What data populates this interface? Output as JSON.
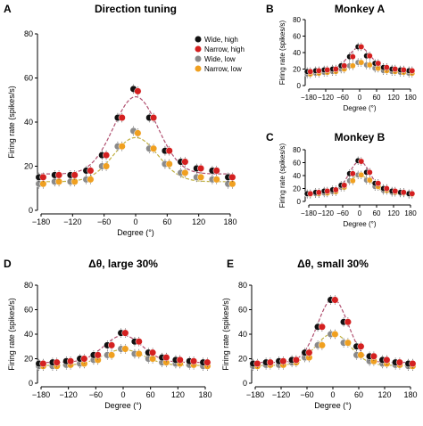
{
  "x_values": [
    -180,
    -150,
    -120,
    -90,
    -60,
    -30,
    0,
    30,
    60,
    90,
    120,
    150,
    180
  ],
  "legend": [
    "Wide, high",
    "Narrow, high",
    "Wide, low",
    "Narrow, low"
  ],
  "colors": {
    "wide_high": "#111111",
    "narrow_high": "#d42020",
    "wide_low": "#8a8a8a",
    "narrow_low": "#f0a020",
    "fit_high": "#b05070",
    "fit_low": "#c0b040"
  },
  "chart_data": [
    {
      "id": "A",
      "type": "scatter",
      "title": "Direction tuning",
      "xlabel": "Degree (°)",
      "ylabel": "Firing rate (spikes/s)",
      "xlim": [
        -180,
        180
      ],
      "ylim": [
        0,
        80
      ],
      "xticks": [
        -180,
        -120,
        -60,
        0,
        60,
        120,
        180
      ],
      "yticks": [
        0,
        20,
        40,
        60,
        80
      ],
      "legend_position": "top-right",
      "series": [
        {
          "name": "Wide, high",
          "values": [
            15,
            16,
            16,
            18,
            25,
            42,
            55,
            42,
            27,
            22,
            19,
            18,
            15
          ]
        },
        {
          "name": "Narrow, high",
          "values": [
            15,
            16,
            16,
            18,
            25,
            42,
            54,
            42,
            27,
            22,
            19,
            18,
            15
          ]
        },
        {
          "name": "Wide, low",
          "values": [
            12,
            13,
            13,
            14,
            20,
            29,
            36,
            28,
            21,
            17,
            15,
            14,
            12
          ]
        },
        {
          "name": "Narrow, low",
          "values": [
            12,
            13,
            13,
            14,
            20,
            29,
            35,
            28,
            21,
            17,
            15,
            14,
            12
          ]
        }
      ],
      "fits": [
        {
          "baseline": 16.5,
          "amplitude": 35,
          "width": 42
        },
        {
          "baseline": 13,
          "amplitude": 20,
          "width": 42
        }
      ]
    },
    {
      "id": "B",
      "type": "scatter",
      "title": "Monkey A",
      "xlabel": "Degree (°)",
      "ylabel": "Firing rate (spikes/s)",
      "xlim": [
        -180,
        180
      ],
      "ylim": [
        0,
        80
      ],
      "xticks": [
        -180,
        -120,
        -60,
        0,
        60,
        120,
        180
      ],
      "yticks": [
        0,
        20,
        40,
        60,
        80
      ],
      "series": [
        {
          "name": "Wide, high",
          "values": [
            17,
            18,
            19,
            20,
            24,
            35,
            47,
            36,
            27,
            22,
            20,
            19,
            18
          ]
        },
        {
          "name": "Narrow, high",
          "values": [
            17,
            18,
            19,
            20,
            24,
            35,
            47,
            36,
            27,
            22,
            20,
            19,
            18
          ]
        },
        {
          "name": "Wide, low",
          "values": [
            14,
            15,
            16,
            17,
            20,
            24,
            28,
            25,
            21,
            18,
            17,
            16,
            15
          ]
        },
        {
          "name": "Narrow, low",
          "values": [
            14,
            15,
            16,
            17,
            20,
            24,
            28,
            25,
            21,
            18,
            17,
            16,
            15
          ]
        }
      ],
      "fits": [
        {
          "baseline": 18.5,
          "amplitude": 28,
          "width": 40
        },
        {
          "baseline": 15.5,
          "amplitude": 12,
          "width": 45
        }
      ]
    },
    {
      "id": "C",
      "type": "scatter",
      "title": "Monkey B",
      "xlabel": "Degree (°)",
      "ylabel": "Firing rate (spikes/s)",
      "xlim": [
        -180,
        180
      ],
      "ylim": [
        0,
        80
      ],
      "xticks": [
        -180,
        -120,
        -60,
        0,
        60,
        120,
        180
      ],
      "yticks": [
        0,
        20,
        40,
        60,
        80
      ],
      "series": [
        {
          "name": "Wide, high",
          "values": [
            12,
            14,
            16,
            18,
            25,
            43,
            63,
            45,
            28,
            20,
            16,
            14,
            12
          ]
        },
        {
          "name": "Narrow, high",
          "values": [
            12,
            14,
            16,
            18,
            25,
            43,
            62,
            45,
            28,
            20,
            16,
            14,
            12
          ]
        },
        {
          "name": "Wide, low",
          "values": [
            11,
            12,
            13,
            15,
            22,
            32,
            41,
            33,
            23,
            17,
            14,
            13,
            11
          ]
        },
        {
          "name": "Narrow, low",
          "values": [
            11,
            12,
            13,
            15,
            22,
            32,
            41,
            33,
            23,
            17,
            14,
            13,
            11
          ]
        }
      ],
      "fits": [
        {
          "baseline": 13,
          "amplitude": 49,
          "width": 38
        },
        {
          "baseline": 12,
          "amplitude": 28,
          "width": 42
        }
      ]
    },
    {
      "id": "D",
      "type": "scatter",
      "title": "Δθ, large 30%",
      "xlabel": "Degree (°)",
      "ylabel": "Firing rate (spikes/s)",
      "xlim": [
        -180,
        180
      ],
      "ylim": [
        0,
        80
      ],
      "xticks": [
        -180,
        -120,
        -60,
        0,
        60,
        120,
        180
      ],
      "yticks": [
        0,
        20,
        40,
        60,
        80
      ],
      "series": [
        {
          "name": "Wide, high",
          "values": [
            16,
            17,
            18,
            20,
            23,
            31,
            41,
            34,
            25,
            21,
            19,
            18,
            17
          ]
        },
        {
          "name": "Narrow, high",
          "values": [
            16,
            17,
            18,
            20,
            23,
            31,
            41,
            34,
            25,
            21,
            19,
            18,
            17
          ]
        },
        {
          "name": "Wide, low",
          "values": [
            14,
            14,
            15,
            16,
            19,
            23,
            28,
            24,
            20,
            17,
            16,
            15,
            14
          ]
        },
        {
          "name": "Narrow, low",
          "values": [
            14,
            14,
            15,
            16,
            19,
            23,
            28,
            24,
            20,
            17,
            16,
            15,
            14
          ]
        }
      ],
      "fits": [
        {
          "baseline": 17,
          "amplitude": 22,
          "width": 42
        },
        {
          "baseline": 14.5,
          "amplitude": 13,
          "width": 45
        }
      ]
    },
    {
      "id": "E",
      "type": "scatter",
      "title": "Δθ, small 30%",
      "xlabel": "Degree (°)",
      "ylabel": "Firing rate (spikes/s)",
      "xlim": [
        -180,
        180
      ],
      "ylim": [
        0,
        80
      ],
      "xticks": [
        -180,
        -120,
        -60,
        0,
        60,
        120,
        180
      ],
      "yticks": [
        0,
        20,
        40,
        60,
        80
      ],
      "series": [
        {
          "name": "Wide, high",
          "values": [
            16,
            17,
            18,
            19,
            25,
            46,
            68,
            50,
            30,
            22,
            19,
            17,
            16
          ]
        },
        {
          "name": "Narrow, high",
          "values": [
            16,
            17,
            18,
            19,
            25,
            46,
            68,
            50,
            30,
            22,
            19,
            17,
            16
          ]
        },
        {
          "name": "Wide, low",
          "values": [
            14,
            15,
            15,
            17,
            21,
            31,
            40,
            33,
            23,
            18,
            16,
            15,
            14
          ]
        },
        {
          "name": "Narrow, low",
          "values": [
            14,
            15,
            15,
            17,
            21,
            31,
            40,
            33,
            23,
            18,
            16,
            15,
            14
          ]
        }
      ],
      "fits": [
        {
          "baseline": 17,
          "amplitude": 52,
          "width": 35
        },
        {
          "baseline": 14.5,
          "amplitude": 26,
          "width": 40
        }
      ]
    }
  ]
}
